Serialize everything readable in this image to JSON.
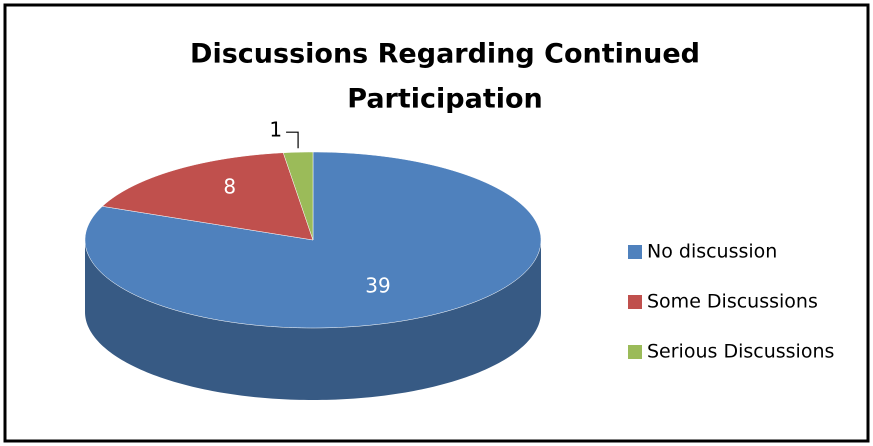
{
  "chart_data": {
    "type": "pie",
    "title": "Discussions Regarding Continued Participation",
    "title_lines": [
      "Discussions Regarding Continued",
      "Participation"
    ],
    "categories": [
      "No discussion",
      "Some Discussions",
      "Serious Discussions"
    ],
    "values": [
      39,
      8,
      1
    ],
    "colors": [
      "#4f81bd",
      "#c0504d",
      "#9bbb59"
    ],
    "legend": "right",
    "three_d": true
  }
}
